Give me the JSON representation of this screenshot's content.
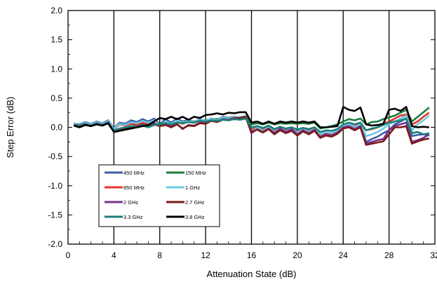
{
  "chart_data": {
    "type": "line",
    "xlabel": "Attenuation State (dB)",
    "ylabel": "Step Error (dB)",
    "xlim": [
      0,
      32
    ],
    "ylim": [
      -2.0,
      2.0
    ],
    "x_ticks": [
      "0",
      "4",
      "8",
      "12",
      "16",
      "20",
      "24",
      "28",
      "32"
    ],
    "y_ticks": [
      "-2.0",
      "-1.5",
      "-1.0",
      "-0.5",
      "0.0",
      "0.5",
      "1.0",
      "1.5",
      "2.0"
    ],
    "grid": "vertical lines at major x ticks",
    "legend_placement": "lower-left, inside plot",
    "x": [
      0.5,
      1,
      1.5,
      2,
      2.5,
      3,
      3.5,
      4,
      4.5,
      5,
      5.5,
      6,
      6.5,
      7,
      7.5,
      8,
      8.5,
      9,
      9.5,
      10,
      10.5,
      11,
      11.5,
      12,
      12.5,
      13,
      13.5,
      14,
      14.5,
      15,
      15.5,
      16,
      16.5,
      17,
      17.5,
      18,
      18.5,
      19,
      19.5,
      20,
      20.5,
      21,
      21.5,
      22,
      22.5,
      23,
      23.5,
      24,
      24.5,
      25,
      25.5,
      26,
      26.5,
      27,
      27.5,
      28,
      28.5,
      29,
      29.5,
      30,
      30.5,
      31,
      31.5
    ],
    "series": [
      {
        "name": "450 MHz",
        "color": "#3b5ea8",
        "values": [
          0.06,
          0.05,
          0.09,
          0.06,
          0.1,
          0.07,
          0.12,
          -0.02,
          0.08,
          0.06,
          0.12,
          0.09,
          0.14,
          0.1,
          0.15,
          0.05,
          0.14,
          0.08,
          0.15,
          0.1,
          0.13,
          0.09,
          0.14,
          0.1,
          0.15,
          0.12,
          0.18,
          0.16,
          0.18,
          0.16,
          0.19,
          -0.1,
          0.0,
          -0.06,
          0.02,
          -0.08,
          0.0,
          -0.06,
          -0.01,
          -0.08,
          -0.02,
          -0.07,
          -0.01,
          -0.15,
          -0.1,
          -0.13,
          -0.07,
          0.02,
          0.06,
          0.0,
          0.06,
          -0.25,
          -0.2,
          -0.16,
          -0.1,
          -0.05,
          0.05,
          0.1,
          0.15,
          -0.15,
          -0.13,
          -0.12,
          -0.14
        ]
      },
      {
        "name": "150 MHz",
        "color": "#1e7b3d",
        "values": [
          0.04,
          0.02,
          0.06,
          0.04,
          0.07,
          0.06,
          0.09,
          -0.05,
          -0.03,
          0.0,
          0.02,
          0.03,
          0.05,
          0.04,
          0.07,
          0.06,
          0.09,
          0.07,
          0.1,
          0.09,
          0.11,
          0.1,
          0.12,
          0.12,
          0.14,
          0.14,
          0.16,
          0.16,
          0.17,
          0.17,
          0.19,
          0.05,
          0.07,
          0.05,
          0.08,
          0.05,
          0.07,
          0.06,
          0.07,
          0.06,
          0.07,
          0.06,
          0.08,
          -0.02,
          0.0,
          0.02,
          0.05,
          0.1,
          0.14,
          0.12,
          0.15,
          0.05,
          0.09,
          0.1,
          0.14,
          0.17,
          0.2,
          0.25,
          0.3,
          0.1,
          0.18,
          0.26,
          0.34
        ]
      },
      {
        "name": "850 MHz",
        "color": "#e8322b",
        "values": [
          0.05,
          0.03,
          0.07,
          0.05,
          0.08,
          0.06,
          0.1,
          -0.04,
          0.05,
          0.03,
          0.06,
          0.05,
          0.08,
          0.06,
          0.09,
          0.02,
          0.08,
          0.04,
          0.09,
          0.06,
          0.1,
          0.08,
          0.12,
          0.1,
          0.13,
          0.12,
          0.16,
          0.15,
          0.17,
          0.16,
          0.18,
          -0.05,
          0.02,
          -0.04,
          0.02,
          -0.06,
          0.01,
          -0.05,
          0.0,
          -0.07,
          -0.01,
          -0.06,
          0.0,
          -0.13,
          -0.09,
          -0.11,
          -0.07,
          0.02,
          0.05,
          0.01,
          0.06,
          -0.05,
          -0.03,
          0.0,
          0.06,
          0.1,
          0.15,
          0.2,
          0.22,
          0.05,
          0.1,
          0.18,
          0.25
        ]
      },
      {
        "name": "1 GHz",
        "color": "#6ccbe6",
        "values": [
          0.05,
          0.04,
          0.08,
          0.05,
          0.09,
          0.06,
          0.11,
          -0.03,
          0.06,
          0.04,
          0.09,
          0.07,
          0.11,
          0.08,
          0.12,
          0.03,
          0.1,
          0.06,
          0.12,
          0.08,
          0.11,
          0.09,
          0.13,
          0.11,
          0.14,
          0.12,
          0.17,
          0.15,
          0.17,
          0.16,
          0.18,
          -0.08,
          0.0,
          -0.06,
          0.0,
          -0.08,
          -0.01,
          -0.07,
          -0.02,
          -0.09,
          -0.03,
          -0.08,
          -0.02,
          -0.12,
          -0.08,
          -0.1,
          -0.05,
          0.03,
          0.05,
          0.0,
          0.05,
          -0.15,
          -0.12,
          -0.08,
          -0.02,
          0.05,
          0.1,
          0.15,
          0.2,
          -0.05,
          0.05,
          0.12,
          0.2
        ]
      },
      {
        "name": "2 GHz",
        "color": "#7a2f8c",
        "values": [
          0.04,
          0.03,
          0.06,
          0.03,
          0.07,
          0.04,
          0.09,
          -0.06,
          -0.04,
          -0.02,
          0.0,
          0.01,
          0.04,
          0.02,
          0.06,
          0.04,
          0.05,
          0.02,
          0.06,
          -0.03,
          0.04,
          0.03,
          0.08,
          0.07,
          0.12,
          0.1,
          0.14,
          0.13,
          0.16,
          0.16,
          0.18,
          -0.1,
          -0.03,
          -0.08,
          -0.02,
          -0.1,
          -0.02,
          -0.08,
          -0.03,
          -0.12,
          -0.05,
          -0.1,
          -0.04,
          -0.17,
          -0.12,
          -0.14,
          -0.09,
          0.0,
          0.02,
          -0.03,
          0.02,
          -0.28,
          -0.25,
          -0.22,
          -0.2,
          -0.05,
          0.02,
          0.05,
          0.08,
          -0.25,
          -0.22,
          -0.18,
          -0.12
        ]
      },
      {
        "name": "2.7 GHz",
        "color": "#7b1a1a",
        "values": [
          0.03,
          0.01,
          0.05,
          0.02,
          0.06,
          0.03,
          0.07,
          -0.07,
          -0.05,
          -0.03,
          -0.01,
          0.0,
          0.03,
          0.01,
          0.05,
          0.02,
          0.04,
          0.0,
          0.05,
          -0.02,
          0.03,
          0.02,
          0.07,
          0.06,
          0.11,
          0.09,
          0.13,
          0.12,
          0.15,
          0.15,
          0.17,
          -0.08,
          -0.04,
          -0.09,
          -0.03,
          -0.12,
          -0.05,
          -0.1,
          -0.06,
          -0.14,
          -0.07,
          -0.12,
          -0.06,
          -0.18,
          -0.14,
          -0.16,
          -0.11,
          -0.02,
          0.0,
          -0.05,
          0.0,
          -0.3,
          -0.28,
          -0.26,
          -0.24,
          -0.12,
          0.0,
          0.0,
          0.02,
          -0.28,
          -0.24,
          -0.21,
          -0.19
        ]
      },
      {
        "name": "3.3 GHz",
        "color": "#1d7f78",
        "values": [
          0.04,
          0.02,
          0.05,
          0.03,
          0.06,
          0.04,
          0.08,
          -0.05,
          -0.02,
          0.0,
          0.02,
          0.0,
          0.03,
          0.0,
          0.04,
          0.05,
          0.07,
          0.05,
          0.08,
          0.07,
          0.09,
          0.08,
          0.11,
          0.1,
          0.12,
          0.11,
          0.13,
          0.12,
          0.14,
          0.13,
          0.15,
          0.0,
          0.02,
          -0.01,
          0.03,
          -0.03,
          0.01,
          -0.02,
          0.0,
          -0.04,
          -0.01,
          -0.03,
          0.0,
          -0.08,
          -0.05,
          -0.06,
          -0.03,
          0.05,
          0.08,
          0.05,
          0.08,
          -0.05,
          -0.02,
          0.0,
          0.04,
          0.08,
          0.1,
          0.12,
          0.15,
          -0.1,
          -0.08,
          -0.12,
          -0.1
        ]
      },
      {
        "name": "3.8 GHz",
        "color": "#000000",
        "values": [
          0.03,
          0.0,
          0.04,
          0.02,
          0.05,
          0.03,
          0.07,
          -0.08,
          -0.06,
          -0.04,
          -0.02,
          0.0,
          0.02,
          0.04,
          0.1,
          0.16,
          0.14,
          0.18,
          0.14,
          0.18,
          0.13,
          0.18,
          0.16,
          0.21,
          0.22,
          0.24,
          0.22,
          0.25,
          0.24,
          0.26,
          0.26,
          0.08,
          0.1,
          0.06,
          0.1,
          0.06,
          0.1,
          0.08,
          0.1,
          0.08,
          0.1,
          0.08,
          0.1,
          0.0,
          0.0,
          0.01,
          0.02,
          0.35,
          0.3,
          0.28,
          0.34,
          0.05,
          0.03,
          0.04,
          0.06,
          0.3,
          0.32,
          0.28,
          0.35,
          0.02,
          0.0,
          0.01,
          0.0
        ]
      }
    ]
  }
}
